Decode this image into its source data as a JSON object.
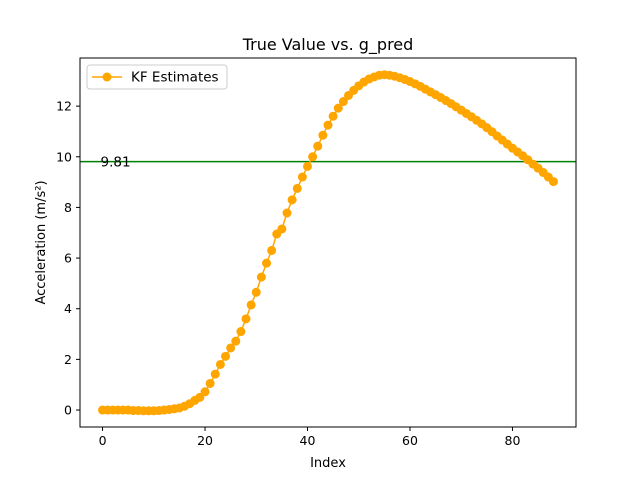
{
  "chart_data": {
    "type": "line",
    "title": "True Value vs. g_pred",
    "xlabel": "Index",
    "ylabel": "Acceleration (m/s²)",
    "xlim": [
      -4.4,
      92.4
    ],
    "ylim": [
      -0.67,
      13.9
    ],
    "xticks": [
      "0",
      "20",
      "40",
      "60",
      "80"
    ],
    "yticks": [
      "0",
      "2",
      "4",
      "6",
      "8",
      "10",
      "12"
    ],
    "grid": false,
    "legend_position": "top-left",
    "series": [
      {
        "name": "KF Estimates",
        "color": "#FFA500",
        "marker": "circle",
        "x": [
          0,
          1,
          2,
          3,
          4,
          5,
          6,
          7,
          8,
          9,
          10,
          11,
          12,
          13,
          14,
          15,
          16,
          17,
          18,
          19,
          20,
          21,
          22,
          23,
          24,
          25,
          26,
          27,
          28,
          29,
          30,
          31,
          32,
          33,
          34,
          35,
          36,
          37,
          38,
          39,
          40,
          41,
          42,
          43,
          44,
          45,
          46,
          47,
          48,
          49,
          50,
          51,
          52,
          53,
          54,
          55,
          56,
          57,
          58,
          59,
          60,
          61,
          62,
          63,
          64,
          65,
          66,
          67,
          68,
          69,
          70,
          71,
          72,
          73,
          74,
          75,
          76,
          77,
          78,
          79,
          80,
          81,
          82,
          83,
          84,
          85,
          86,
          87,
          88
        ],
        "y": [
          0.0,
          0.0,
          0.0,
          0.0,
          0.0,
          0.0,
          -0.02,
          -0.02,
          -0.03,
          -0.03,
          -0.03,
          -0.02,
          0.0,
          0.02,
          0.05,
          0.08,
          0.15,
          0.25,
          0.38,
          0.5,
          0.72,
          1.05,
          1.42,
          1.8,
          2.12,
          2.45,
          2.72,
          3.1,
          3.6,
          4.15,
          4.65,
          5.25,
          5.8,
          6.3,
          6.95,
          7.15,
          7.78,
          8.3,
          8.75,
          9.2,
          9.62,
          10.0,
          10.42,
          10.85,
          11.25,
          11.6,
          11.92,
          12.18,
          12.42,
          12.62,
          12.8,
          12.95,
          13.07,
          13.15,
          13.22,
          13.24,
          13.22,
          13.18,
          13.12,
          13.05,
          12.97,
          12.88,
          12.78,
          12.67,
          12.56,
          12.45,
          12.34,
          12.22,
          12.1,
          11.97,
          11.84,
          11.71,
          11.58,
          11.44,
          11.3,
          11.15,
          10.99,
          10.82,
          10.66,
          10.5,
          10.34,
          10.19,
          10.04,
          9.88,
          9.71,
          9.55,
          9.38,
          9.2,
          9.02
        ]
      }
    ],
    "reference_line": {
      "y": 9.81,
      "label": "9.81",
      "color": "#008000"
    }
  }
}
